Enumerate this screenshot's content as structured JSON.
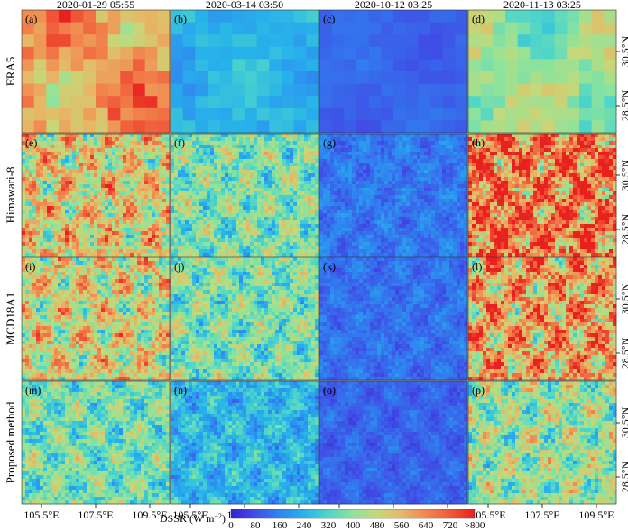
{
  "chart_data": {
    "type": "heatmap",
    "columns": [
      "2020-01-29 05:55",
      "2020-03-14 03:50",
      "2020-10-12 03:25",
      "2020-11-13 03:25"
    ],
    "rows": [
      "ERA5",
      "Himawari-8",
      "MCD18A1",
      "Proposed method"
    ],
    "panel_labels": [
      "(a)",
      "(b)",
      "(c)",
      "(d)",
      "(e)",
      "(f)",
      "(g)",
      "(h)",
      "(i)",
      "(j)",
      "(k)",
      "(l)",
      "(m)",
      "(n)",
      "(o)",
      "(p)"
    ],
    "x_ticks": [
      "105.5°E",
      "107.5°E",
      "109.5°E"
    ],
    "y_ticks": [
      "30.5°N",
      "28.5°N"
    ],
    "colorbar": {
      "label": "DSSR (W m",
      "label_sup": "−2",
      "label_end": ")",
      "ticks": [
        "0",
        "80",
        "160",
        "240",
        "320",
        "400",
        "480",
        "560",
        "640",
        "720",
        ">800"
      ],
      "range": [
        0,
        800
      ],
      "colors": [
        "#3a1fd9",
        "#3f4fe6",
        "#2f86f0",
        "#27b3ea",
        "#4fd6c8",
        "#8de39c",
        "#c4d97a",
        "#e6b866",
        "#f2874f",
        "#f05a3a",
        "#e8201e"
      ]
    },
    "panel_mean_dssr": [
      [
        600,
        240,
        110,
        420
      ],
      [
        520,
        380,
        140,
        680
      ],
      [
        500,
        380,
        130,
        600
      ],
      [
        370,
        250,
        110,
        420
      ]
    ]
  }
}
